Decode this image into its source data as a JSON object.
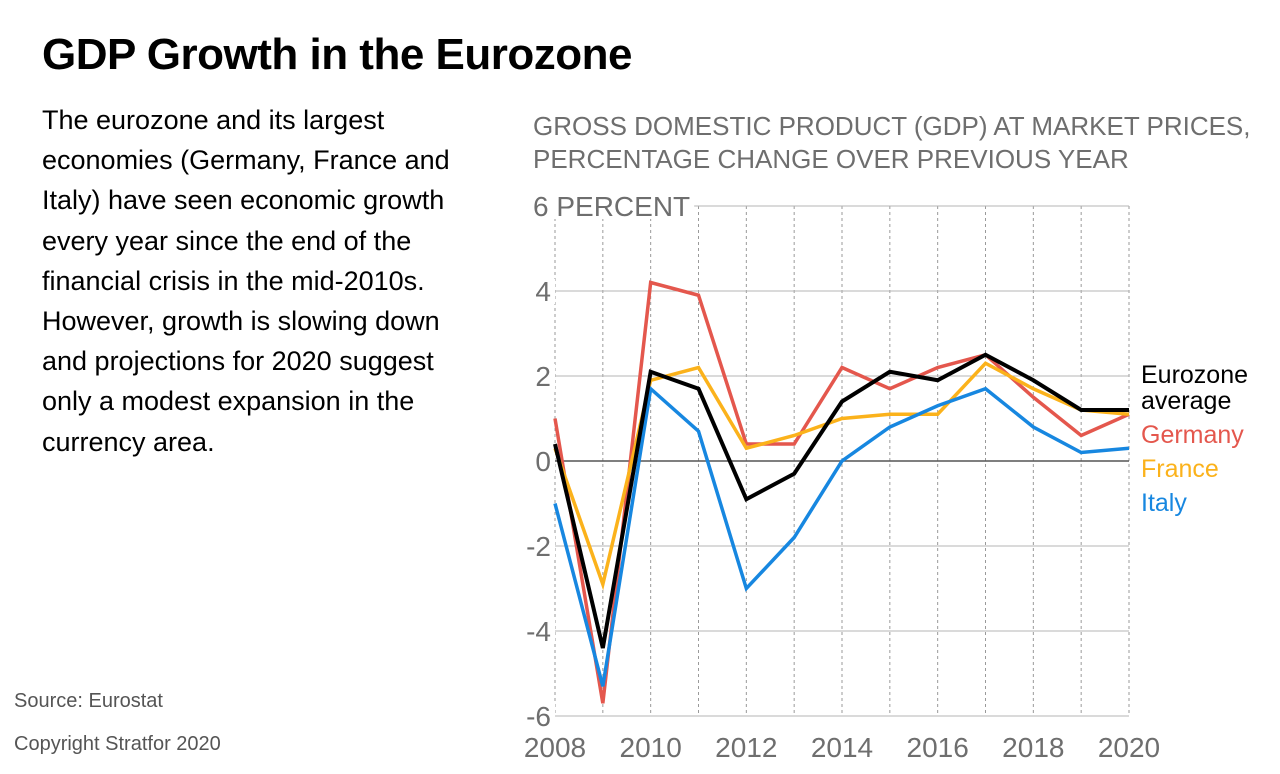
{
  "title": "GDP Growth in the Eurozone",
  "intro": "The eurozone and its largest economies (Germany, France and Italy) have seen economic growth every year since the end of the financial crisis in the mid-2010s. However, growth is slowing down and projections for 2020 suggest only a modest expansion in the currency area.",
  "source": "Source: Eurostat",
  "copyright": "Copyright Stratfor 2020",
  "chart_data": {
    "type": "line",
    "title": "GROSS DOMESTIC PRODUCT (GDP) AT MARKET PRICES, PERCENTAGE CHANGE OVER PREVIOUS YEAR",
    "xlabel": "",
    "ylabel": "",
    "ylim": [
      -6,
      6
    ],
    "xlim": [
      2008,
      2020
    ],
    "y_unit_label": "6 PERCENT",
    "yticks": [
      -6,
      -4,
      -2,
      0,
      2,
      4,
      6
    ],
    "ytick_labels": [
      "-6",
      "-4",
      "-2",
      "0",
      "2",
      "4",
      "6 PERCENT"
    ],
    "xticks": [
      2008,
      2010,
      2012,
      2014,
      2016,
      2018,
      2020
    ],
    "xtick_labels": [
      "2008",
      "2010",
      "2012",
      "2014",
      "2016",
      "2018",
      "2020"
    ],
    "grid": "vertical dotted, horizontal solid",
    "legend_placement": "right",
    "x": [
      2008,
      2009,
      2010,
      2011,
      2012,
      2013,
      2014,
      2015,
      2016,
      2017,
      2018,
      2019,
      2020
    ],
    "series": [
      {
        "name": "Germany",
        "color": "#e4574d",
        "values": [
          1.0,
          -5.7,
          4.2,
          3.9,
          0.4,
          0.4,
          2.2,
          1.7,
          2.2,
          2.5,
          1.5,
          0.6,
          1.1
        ]
      },
      {
        "name": "France",
        "color": "#fbb21b",
        "values": [
          0.3,
          -2.9,
          1.9,
          2.2,
          0.3,
          0.6,
          1.0,
          1.1,
          1.1,
          2.3,
          1.7,
          1.2,
          1.1
        ]
      },
      {
        "name": "Italy",
        "color": "#1787e0",
        "values": [
          -1.0,
          -5.3,
          1.7,
          0.7,
          -3.0,
          -1.8,
          0.0,
          0.8,
          1.3,
          1.7,
          0.8,
          0.2,
          0.3
        ]
      },
      {
        "name": "Eurozone average",
        "legend_lines": [
          "Eurozone",
          "average"
        ],
        "color": "#000000",
        "values": [
          0.4,
          -4.4,
          2.1,
          1.7,
          -0.9,
          -0.3,
          1.4,
          2.1,
          1.9,
          2.5,
          1.9,
          1.2,
          1.2
        ]
      }
    ]
  }
}
